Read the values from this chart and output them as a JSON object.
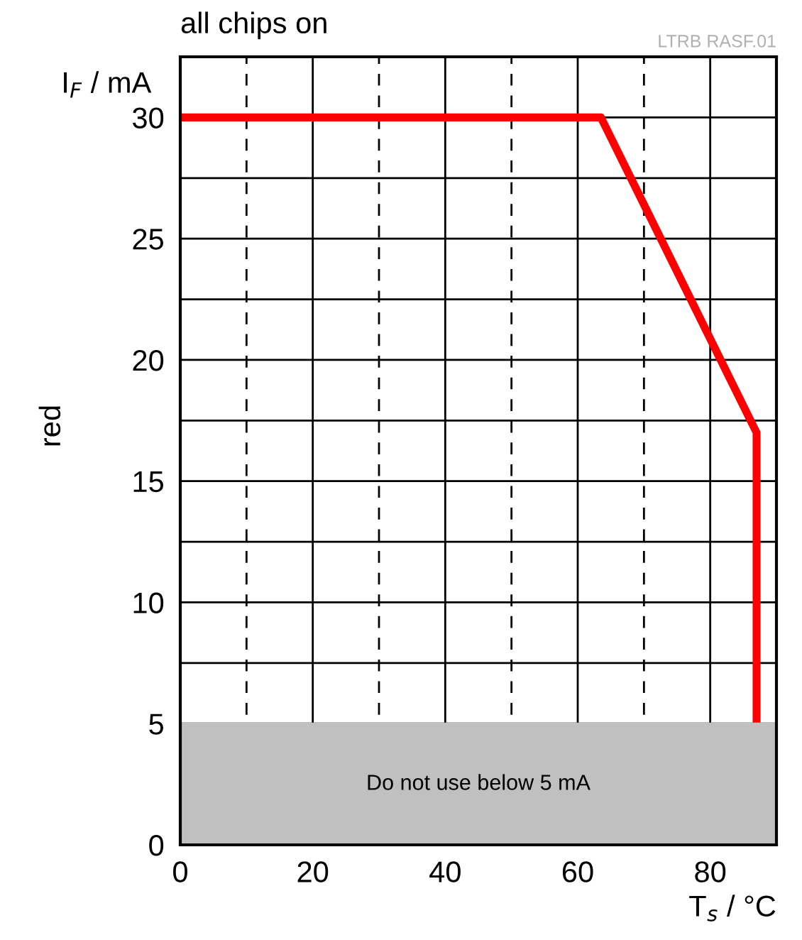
{
  "chart_data": {
    "type": "line",
    "title": "all chips on",
    "ylabel": "I$_{F}$ / mA",
    "xlabel": "T$_{s}$ / °C",
    "annotations": [
      "LTRB RASF.01",
      "red"
    ],
    "series": [
      {
        "x": [
          0,
          63.5,
          87,
          87
        ],
        "values": [
          30,
          30,
          17,
          5
        ],
        "color": "#ff0000"
      }
    ],
    "bands": [
      {
        "axis": "y",
        "from": 0,
        "to": 5,
        "label": "Do not use below 5 mA",
        "color": "#c0c0c0"
      }
    ],
    "xlim": [
      0,
      90
    ],
    "ylim": [
      0,
      32.5
    ],
    "xticks": [
      0,
      {
        "value": 10,
        "label": null
      },
      20,
      {
        "value": 30,
        "label": null
      },
      40,
      {
        "value": 50,
        "label": null
      },
      60,
      {
        "value": 70,
        "label": null
      },
      80
    ],
    "yticks": [
      0,
      5,
      {
        "value": 7.5,
        "label": null
      },
      10,
      {
        "value": 12.5,
        "label": null
      },
      15,
      {
        "value": 17.5,
        "label": null
      },
      20,
      {
        "value": 22.5,
        "label": null
      },
      25,
      {
        "value": 27.5,
        "label": null
      },
      30
    ],
    "grid": true,
    "marker": "none",
    "line_style": "solid"
  }
}
